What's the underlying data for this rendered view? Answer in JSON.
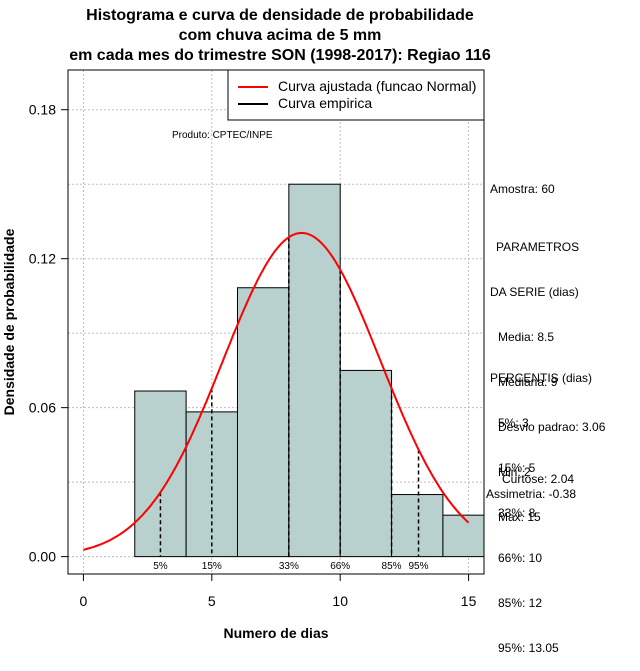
{
  "chart_data": {
    "type": "bar",
    "title_lines": [
      "Histograma e curva de densidade de probabilidade",
      "com chuva acima de 5 mm",
      "em cada mes do trimestre SON (1998-2017): Regiao 116"
    ],
    "xlabel": "Numero de dias",
    "ylabel": "Densidade de probabilidade",
    "xlim": [
      -0.6,
      15.6
    ],
    "ylim": [
      -0.007,
      0.196
    ],
    "x_ticks": [
      0,
      5,
      10,
      15
    ],
    "y_ticks": [
      0.0,
      0.06,
      0.12,
      0.18
    ],
    "y_tick_labels": [
      "0.00",
      "0.06",
      "0.12",
      "0.18"
    ],
    "bins": [
      {
        "from": 2,
        "to": 4,
        "density": 0.0667
      },
      {
        "from": 4,
        "to": 6,
        "density": 0.0583
      },
      {
        "from": 6,
        "to": 8,
        "density": 0.1083
      },
      {
        "from": 8,
        "to": 10,
        "density": 0.15
      },
      {
        "from": 10,
        "to": 12,
        "density": 0.075
      },
      {
        "from": 12,
        "to": 14,
        "density": 0.025
      },
      {
        "from": 14,
        "to": 16,
        "density": 0.0167
      }
    ],
    "normal_curve": {
      "name": "Curva ajustada (funcao Normal)",
      "mean": 8.5,
      "sd": 3.06,
      "x_from": 0,
      "x_to": 15,
      "color": "#ff0000"
    },
    "empirical_curve": {
      "name": "Curva empirica",
      "color": "#000000"
    },
    "percentiles": [
      {
        "label": "5%",
        "x": 3
      },
      {
        "label": "15%",
        "x": 5
      },
      {
        "label": "33%",
        "x": 8
      },
      {
        "label": "66%",
        "x": 10
      },
      {
        "label": "85%",
        "x": 12
      },
      {
        "label": "95%",
        "x": 13.05
      }
    ],
    "bar_color": "#b8d0ce",
    "legend_position": "top-right",
    "grid": true
  },
  "annotations": {
    "produto": "Produto: CPTEC/INPE",
    "amostra": "Amostra: 60",
    "parametros": [
      "PARAMETROS",
      "DA SERIE (dias)",
      "Media: 8.5",
      "Mediana: 9",
      "Desvio padrao: 3.06",
      "Min: 2",
      "Max: 15"
    ],
    "percentis": [
      "PERCENTIS (dias)",
      "5%: 3",
      "15%: 5",
      "33%: 8",
      "66%: 10",
      "85%: 12",
      "95%: 13.05"
    ],
    "curtose": "Curtose: 2.04",
    "assimetria": "Assimetria: -0.38"
  }
}
